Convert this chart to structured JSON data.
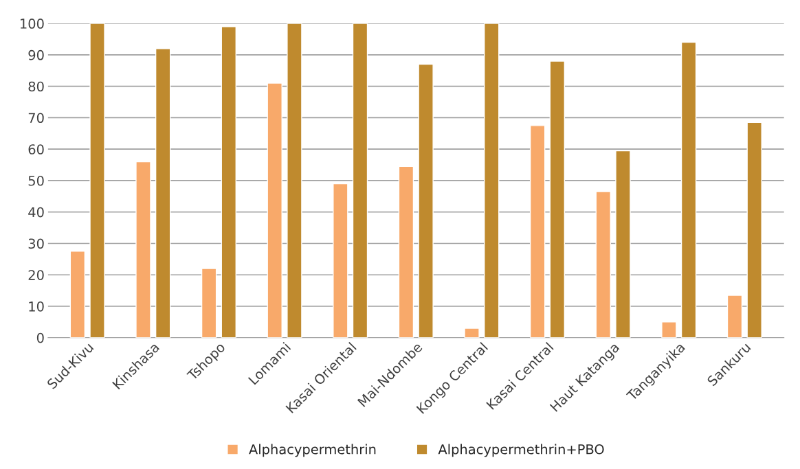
{
  "chart_data": {
    "type": "bar",
    "categories": [
      "Sud-Kivu",
      "Kinshasa",
      "Tshopo",
      "Lomami",
      "Kasai Oriental",
      "Mai-Ndombe",
      "Kongo Central",
      "Kasai Central",
      "Haut Katanga",
      "Tanganyika",
      "Sankuru"
    ],
    "series": [
      {
        "name": "Alphacypermethrin",
        "color": "#f8a96a",
        "values": [
          27.5,
          56,
          22,
          81,
          49,
          54.5,
          3,
          67.5,
          46.5,
          5,
          13.5
        ]
      },
      {
        "name": "Alphacypermethrin+PBO",
        "color": "#bf8a2e",
        "values": [
          100,
          92,
          99,
          100,
          100,
          87,
          100,
          88,
          59.5,
          94,
          68.5
        ]
      }
    ],
    "ylim": [
      0,
      100
    ],
    "yticks": [
      0,
      10,
      20,
      30,
      40,
      50,
      60,
      70,
      80,
      90,
      100
    ],
    "grid": "y",
    "legend": "bottom"
  }
}
